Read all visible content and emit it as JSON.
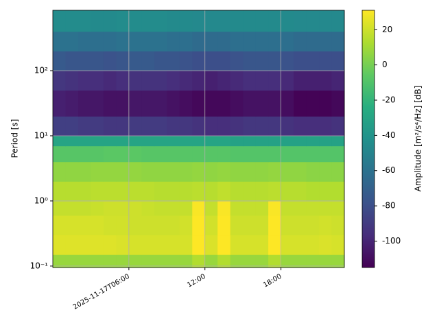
{
  "chart_data": {
    "type": "heatmap",
    "y_label": "Period [s]",
    "colorbar_label": "Amplitude [m²/s⁴/Hz] [dB]",
    "colormap": "viridis",
    "x_edges": [
      "2025-11-17T00:00",
      "2025-11-17T01:00",
      "2025-11-17T02:00",
      "2025-11-17T03:00",
      "2025-11-17T04:00",
      "2025-11-17T05:00",
      "2025-11-17T06:00",
      "2025-11-17T07:00",
      "2025-11-17T08:00",
      "2025-11-17T09:00",
      "2025-11-17T10:00",
      "2025-11-17T11:00",
      "2025-11-17T12:00",
      "2025-11-17T13:00",
      "2025-11-17T14:00",
      "2025-11-17T15:00",
      "2025-11-17T16:00",
      "2025-11-17T17:00",
      "2025-11-17T18:00",
      "2025-11-17T19:00",
      "2025-11-17T20:00",
      "2025-11-17T21:00",
      "2025-11-17T22:00",
      "2025-11-17T23:00"
    ],
    "y_edges": [
      0.095,
      0.15,
      0.3,
      0.6,
      1,
      2,
      4,
      7,
      10,
      20,
      50,
      100,
      200,
      400,
      845
    ],
    "values": [
      [
        8,
        8,
        8,
        8,
        8,
        8,
        8,
        8,
        8,
        8,
        8,
        14,
        8,
        14,
        8,
        8,
        8,
        14,
        8,
        8,
        8,
        8,
        8
      ],
      [
        24,
        24,
        24,
        24,
        24,
        23,
        22,
        22,
        22,
        22,
        22,
        31,
        23,
        31,
        22,
        22,
        22,
        31,
        22,
        22,
        22,
        23,
        22
      ],
      [
        22,
        22,
        22,
        22,
        21,
        21,
        20,
        20,
        20,
        20,
        21,
        31,
        21,
        31,
        20,
        20,
        20,
        31,
        20,
        20,
        20,
        21,
        20
      ],
      [
        18,
        18,
        18,
        19,
        20,
        20,
        20,
        19,
        18,
        18,
        18,
        30,
        18,
        30,
        18,
        18,
        18,
        30,
        18,
        18,
        18,
        18,
        18
      ],
      [
        15,
        15,
        15,
        16,
        16,
        16,
        16,
        16,
        15,
        15,
        15,
        16,
        15,
        17,
        15,
        15,
        15,
        16,
        15,
        15,
        14,
        14,
        14
      ],
      [
        6,
        6,
        6,
        7,
        7,
        7,
        7,
        6,
        6,
        6,
        6,
        7,
        6,
        7,
        6,
        6,
        6,
        7,
        6,
        6,
        5,
        5,
        5
      ],
      [
        -8,
        -8,
        -8,
        -8,
        -7,
        -7,
        -7,
        -8,
        -8,
        -8,
        -8,
        -8,
        -8,
        -8,
        -9,
        -9,
        -9,
        -9,
        -9,
        -9,
        -9,
        -9,
        -9
      ],
      [
        -30,
        -30,
        -30,
        -30,
        -30,
        -30,
        -30,
        -30,
        -30,
        -30,
        -30,
        -30,
        -30,
        -30,
        -32,
        -32,
        -32,
        -32,
        -32,
        -32,
        -32,
        -32,
        -32
      ],
      [
        -88,
        -88,
        -90,
        -90,
        -92,
        -92,
        -90,
        -90,
        -90,
        -92,
        -92,
        -94,
        -96,
        -96,
        -94,
        -92,
        -92,
        -92,
        -94,
        -96,
        -96,
        -96,
        -94
      ],
      [
        -102,
        -104,
        -106,
        -106,
        -108,
        -108,
        -106,
        -106,
        -106,
        -108,
        -110,
        -112,
        -112,
        -112,
        -110,
        -108,
        -108,
        -108,
        -110,
        -114,
        -114,
        -114,
        -112
      ],
      [
        -92,
        -94,
        -96,
        -96,
        -98,
        -96,
        -94,
        -94,
        -94,
        -96,
        -98,
        -100,
        -102,
        -100,
        -98,
        -96,
        -96,
        -96,
        -98,
        -102,
        -102,
        -102,
        -100
      ],
      [
        -74,
        -76,
        -76,
        -76,
        -78,
        -76,
        -74,
        -74,
        -76,
        -76,
        -78,
        -80,
        -80,
        -80,
        -78,
        -76,
        -76,
        -76,
        -78,
        -80,
        -80,
        -80,
        -80
      ],
      [
        -60,
        -60,
        -62,
        -62,
        -62,
        -60,
        -60,
        -60,
        -60,
        -62,
        -62,
        -64,
        -64,
        -64,
        -62,
        -62,
        -62,
        -62,
        -62,
        -64,
        -64,
        -64,
        -64
      ],
      [
        -45,
        -45,
        -45,
        -46,
        -46,
        -45,
        -45,
        -45,
        -45,
        -46,
        -46,
        -47,
        -47,
        -47,
        -46,
        -46,
        -46,
        -46,
        -46,
        -47,
        -47,
        -47,
        -47
      ]
    ],
    "xlim": [
      "2025-11-17T00:00",
      "2025-11-17T23:00"
    ],
    "xticks": [
      "2025-11-17T06:00",
      {
        "value": "2025-11-17T12:00",
        "label": "12:00"
      },
      {
        "value": "2025-11-17T18:00",
        "label": "18:00"
      }
    ],
    "ylim": [
      0.095,
      845
    ],
    "log_y": true,
    "yticks": [
      {
        "value": 0.1,
        "label": "10⁻¹"
      },
      {
        "value": 1,
        "label": "10⁰"
      },
      {
        "value": 10,
        "label": "10¹"
      },
      {
        "value": 100,
        "label": "10²"
      }
    ],
    "clim": [
      -115,
      31
    ],
    "cticks": [
      -100,
      -80,
      -60,
      -40,
      -20,
      0,
      20
    ],
    "grid": true
  }
}
